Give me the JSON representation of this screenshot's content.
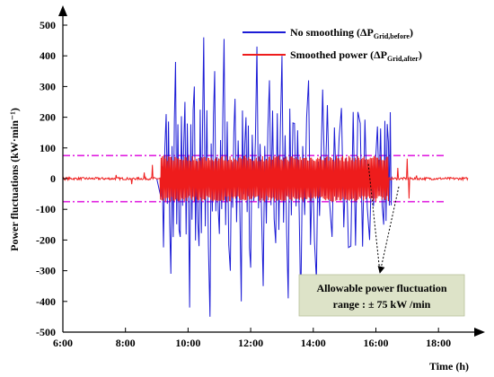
{
  "chart_data": {
    "type": "line",
    "xlabel": "Time (h)",
    "ylabel": "Power fluctuations (kW·min⁻¹)",
    "x_ticks": [
      "6:00",
      "8:00",
      "10:00",
      "12:00",
      "14:00",
      "16:00",
      "18:00"
    ],
    "xlim_hours": [
      6,
      19.2
    ],
    "ylim": [
      -500,
      500
    ],
    "y_ticks": [
      -500,
      -400,
      -300,
      -200,
      -100,
      0,
      100,
      200,
      300,
      400,
      500
    ],
    "grid": false,
    "legend_position": "top-right",
    "series": [
      {
        "name": "No smoothing (ΔP",
        "name_sub": "Grid,before",
        "name_tail": ")",
        "color": "#1c1cd6",
        "peak_points": [
          {
            "x": 9.13,
            "y": -60
          },
          {
            "x": 9.3,
            "y": 210
          },
          {
            "x": 9.45,
            "y": -310
          },
          {
            "x": 9.6,
            "y": 380
          },
          {
            "x": 9.75,
            "y": -190
          },
          {
            "x": 9.9,
            "y": 250
          },
          {
            "x": 10.05,
            "y": -420
          },
          {
            "x": 10.2,
            "y": 300
          },
          {
            "x": 10.35,
            "y": -220
          },
          {
            "x": 10.5,
            "y": 460
          },
          {
            "x": 10.7,
            "y": -450
          },
          {
            "x": 10.85,
            "y": 350
          },
          {
            "x": 11.0,
            "y": -180
          },
          {
            "x": 11.15,
            "y": 455
          },
          {
            "x": 11.35,
            "y": -300
          },
          {
            "x": 11.5,
            "y": 260
          },
          {
            "x": 11.7,
            "y": -400
          },
          {
            "x": 11.85,
            "y": 200
          },
          {
            "x": 12.0,
            "y": -290
          },
          {
            "x": 12.2,
            "y": 430
          },
          {
            "x": 12.4,
            "y": -350
          },
          {
            "x": 12.6,
            "y": 320
          },
          {
            "x": 12.8,
            "y": -210
          },
          {
            "x": 13.0,
            "y": 400
          },
          {
            "x": 13.2,
            "y": -390
          },
          {
            "x": 13.4,
            "y": 180
          },
          {
            "x": 13.6,
            "y": -420
          },
          {
            "x": 13.85,
            "y": 320
          },
          {
            "x": 14.1,
            "y": -330
          },
          {
            "x": 14.3,
            "y": 290
          },
          {
            "x": 14.6,
            "y": -190
          },
          {
            "x": 14.9,
            "y": 230
          },
          {
            "x": 15.2,
            "y": -220
          },
          {
            "x": 15.5,
            "y": 180
          },
          {
            "x": 15.8,
            "y": -200
          },
          {
            "x": 16.05,
            "y": 170
          },
          {
            "x": 16.25,
            "y": -150
          },
          {
            "x": 16.4,
            "y": 120
          }
        ]
      },
      {
        "name": "Smoothed power (ΔP",
        "name_sub": "Grid,after",
        "name_tail": ")",
        "color": "#ee1c1c",
        "envelope_kw_per_min": 75,
        "active_span_hours": [
          9.1,
          16.4
        ],
        "spike_points": [
          {
            "x": 7.7,
            "y": 12
          },
          {
            "x": 8.2,
            "y": -18
          },
          {
            "x": 8.6,
            "y": 20
          },
          {
            "x": 8.85,
            "y": 45
          },
          {
            "x": 16.7,
            "y": 35
          },
          {
            "x": 17.0,
            "y": 65
          },
          {
            "x": 17.05,
            "y": -65
          },
          {
            "x": 17.3,
            "y": 10
          }
        ]
      }
    ],
    "reference_lines": [
      {
        "y": 75,
        "color": "#e020e0",
        "style": "dash-dot"
      },
      {
        "y": -75,
        "color": "#e020e0",
        "style": "dash-dot"
      }
    ],
    "annotation": {
      "line1": "Allowable power fluctuation",
      "line2": "range : ± 75 kW /min",
      "background": "#dde3c8"
    }
  }
}
